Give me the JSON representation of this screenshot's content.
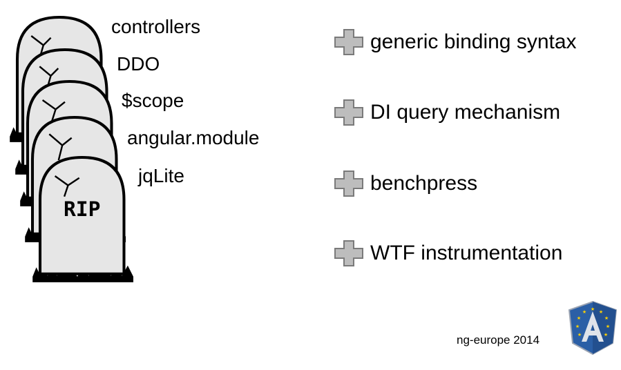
{
  "removed": {
    "items": [
      "controllers",
      "DDO",
      "$scope",
      "angular.module",
      "jqLite"
    ],
    "tombstone_text": "RIP"
  },
  "added": {
    "items": [
      "generic binding syntax",
      "DI query mechanism",
      "benchpress",
      "WTF instrumentation"
    ],
    "icon": "plus-icon"
  },
  "footer": {
    "text": "ng-europe 2014"
  },
  "logo": {
    "icon": "angular-europe-shield-icon"
  },
  "colors": {
    "tombstone_fill": "#e6e6e6",
    "plus_fill": "#bdbdbd",
    "plus_stroke": "#7a7a7a",
    "shield_blue": "#2b5fa6",
    "shield_light": "#dfe3ea",
    "star": "#ffd200"
  }
}
